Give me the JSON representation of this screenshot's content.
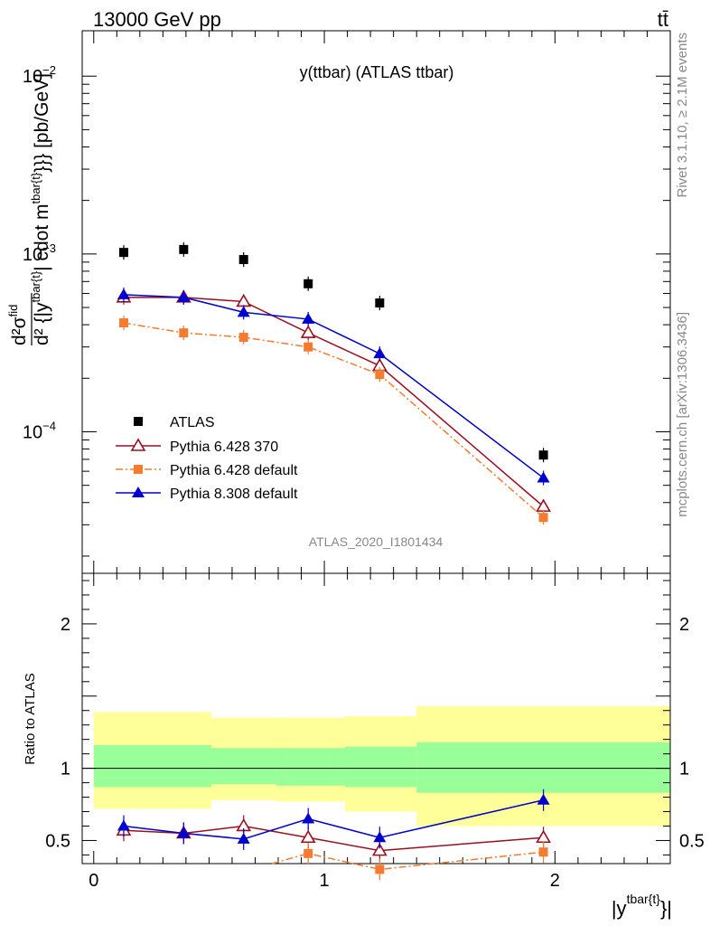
{
  "header": {
    "left": "13000 GeV pp",
    "right": "tt̄"
  },
  "side_labels": {
    "top": "Rivet 3.1.10, ≥ 2.1M events",
    "bottom": "mcplots.cern.ch [arXiv:1306.3436]"
  },
  "watermark": "ATLAS_2020_I1801434",
  "chart_data": [
    {
      "type": "line",
      "title": "y(ttbar) (ATLAS ttbar)",
      "ylabel": "d²σ^fid / d²{|y^tbar{t}| cdot m^tbar{t}}}} [pb/GeV]",
      "ylabel_main": "d²σ",
      "ylabel_sup": "fid",
      "ylabel_den": "d² {|y",
      "ylabel_den_sub": "tbar{t}",
      "ylabel_den_rest": "| cdot m",
      "ylabel_den_sup": "tbar{t}",
      "ylabel_tail": "}}} [pb/GeV]",
      "yscale": "log",
      "ylim": [
        1.6e-05,
        0.018
      ],
      "xlim": [
        -0.05,
        2.5
      ],
      "ytick_labels": [
        "10^-4",
        "10^-3",
        "10^-2"
      ],
      "ytick_base": "10",
      "ytick_exps": [
        "−4",
        "−3",
        "−2"
      ],
      "x": [
        0.13,
        0.39,
        0.65,
        0.93,
        1.24,
        1.95
      ],
      "series": [
        {
          "name": "ATLAS",
          "values": [
            0.00102,
            0.00106,
            0.00093,
            0.00068,
            0.00053,
            7.4e-05
          ],
          "color": "#000000",
          "marker": "square",
          "line": "none"
        },
        {
          "name": "Pythia 6.428 370",
          "values": [
            0.00057,
            0.00057,
            0.00054,
            0.00036,
            0.000235,
            3.8e-05
          ],
          "color": "#9b0f1f",
          "marker": "open-triangle",
          "line": "solid"
        },
        {
          "name": "Pythia 6.428 default",
          "values": [
            0.00041,
            0.00036,
            0.00034,
            0.0003,
            0.00021,
            3.3e-05
          ],
          "color": "#f47b30",
          "marker": "square",
          "line": "dashdot"
        },
        {
          "name": "Pythia 8.308 default",
          "values": [
            0.00059,
            0.00057,
            0.00047,
            0.00043,
            0.000275,
            5.5e-05
          ],
          "color": "#0000cc",
          "marker": "filled-triangle",
          "line": "solid"
        }
      ],
      "legend_position": "lower-left"
    },
    {
      "type": "line",
      "ylabel": "Ratio to ATLAS",
      "xlabel": "|y^tbar{t}}|",
      "xlabel_main": "|y",
      "xlabel_sup": "tbar{t}",
      "xlabel_tail": "}|",
      "ylim": [
        0.34,
        2.35
      ],
      "xlim": [
        -0.05,
        2.5
      ],
      "xtick_labels": [
        "0",
        "1",
        "2"
      ],
      "ytick_labels": [
        "0.5",
        "1",
        "2"
      ],
      "bands": [
        {
          "x0": 0.0,
          "x1": 0.51,
          "inner": [
            0.87,
            1.16
          ],
          "outer": [
            0.72,
            1.39
          ]
        },
        {
          "x0": 0.51,
          "x1": 0.79,
          "inner": [
            0.89,
            1.14
          ],
          "outer": [
            0.78,
            1.35
          ]
        },
        {
          "x0": 0.79,
          "x1": 1.09,
          "inner": [
            0.88,
            1.14
          ],
          "outer": [
            0.77,
            1.35
          ]
        },
        {
          "x0": 1.09,
          "x1": 1.4,
          "inner": [
            0.87,
            1.15
          ],
          "outer": [
            0.7,
            1.36
          ]
        },
        {
          "x0": 1.4,
          "x1": 2.5,
          "inner": [
            0.83,
            1.18
          ],
          "outer": [
            0.6,
            1.43
          ]
        }
      ],
      "x": [
        0.13,
        0.39,
        0.65,
        0.93,
        1.24,
        1.95
      ],
      "series": [
        {
          "name": "Pythia 6.428 370",
          "values": [
            0.57,
            0.55,
            0.6,
            0.52,
            0.43,
            0.52
          ],
          "color": "#9b0f1f"
        },
        {
          "name": "Pythia 6.428 default",
          "values": [
            null,
            null,
            null,
            0.41,
            0.3,
            0.42
          ],
          "color": "#f47b30"
        },
        {
          "name": "Pythia 8.308 default",
          "values": [
            0.6,
            0.55,
            0.51,
            0.65,
            0.52,
            0.78
          ],
          "color": "#0000cc"
        }
      ]
    }
  ]
}
